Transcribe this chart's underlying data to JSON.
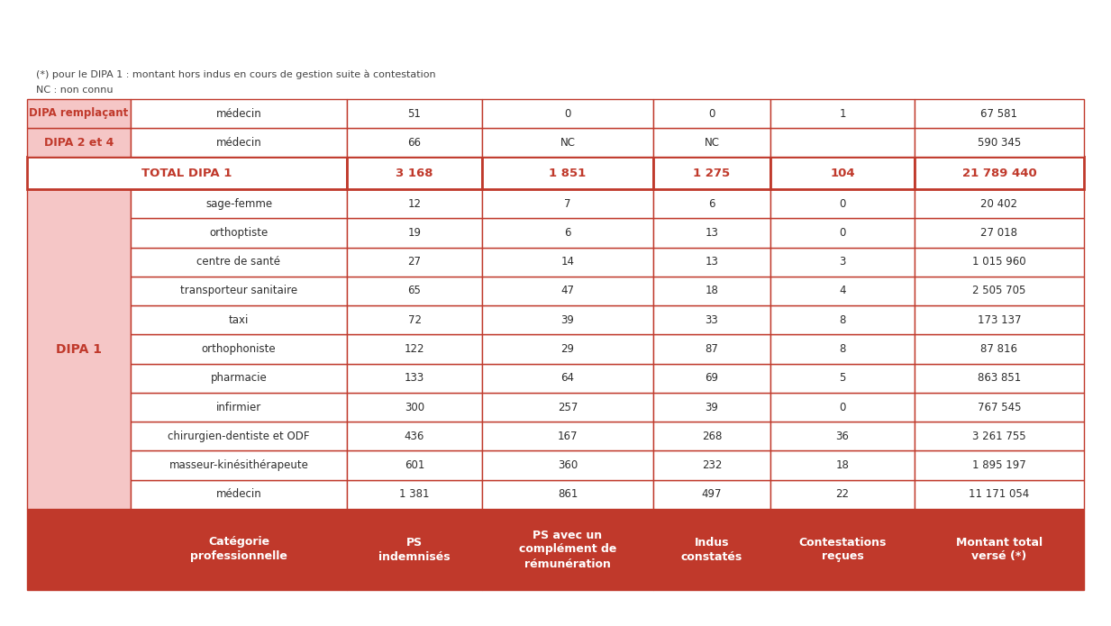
{
  "header_bg": "#c0392b",
  "header_text_color": "#ffffff",
  "left_col_bg": "#f5c6c6",
  "row_bg_white": "#ffffff",
  "border_color": "#c0392b",
  "text_color": "#2d2d2d",
  "total_text_color": "#c0392b",
  "footnote_color": "#444444",
  "headers": [
    "Catégorie\nprofessionnelle",
    "PS\nindemnisés",
    "PS avec un\ncomplément de\nrémunération",
    "Indus\nconstatés",
    "Contestations\nreçues",
    "Montant total\nversé (*)"
  ],
  "dipa1_label": "DIPA 1",
  "dipa2_label": "DIPA 2 et 4",
  "diparemp_label": "DIPA remplaçant",
  "rows_dipa1": [
    [
      "médecin",
      "1 381",
      "861",
      "497",
      "22",
      "11 171 054"
    ],
    [
      "masseur-kinésithérapeute",
      "601",
      "360",
      "232",
      "18",
      "1 895 197"
    ],
    [
      "chirurgien-dentiste et ODF",
      "436",
      "167",
      "268",
      "36",
      "3 261 755"
    ],
    [
      "infirmier",
      "300",
      "257",
      "39",
      "0",
      "767 545"
    ],
    [
      "pharmacie",
      "133",
      "64",
      "69",
      "5",
      "863 851"
    ],
    [
      "orthophoniste",
      "122",
      "29",
      "87",
      "8",
      "87 816"
    ],
    [
      "taxi",
      "72",
      "39",
      "33",
      "8",
      "173 137"
    ],
    [
      "transporteur sanitaire",
      "65",
      "47",
      "18",
      "4",
      "2 505 705"
    ],
    [
      "centre de santé",
      "27",
      "14",
      "13",
      "3",
      "1 015 960"
    ],
    [
      "orthoptiste",
      "19",
      "6",
      "13",
      "0",
      "27 018"
    ],
    [
      "sage-femme",
      "12",
      "7",
      "6",
      "0",
      "20 402"
    ]
  ],
  "total_row": [
    "TOTAL DIPA 1",
    "3 168",
    "1 851",
    "1 275",
    "104",
    "21 789 440"
  ],
  "row_dipa2": [
    "médecin",
    "66",
    "NC",
    "NC",
    "",
    "590 345"
  ],
  "row_diparemp": [
    "médecin",
    "51",
    "0",
    "0",
    "1",
    "67 581"
  ],
  "footnotes": [
    "NC : non connu",
    "(*) pour le DIPA 1 : montant hors indus en cours de gestion suite à contestation"
  ]
}
